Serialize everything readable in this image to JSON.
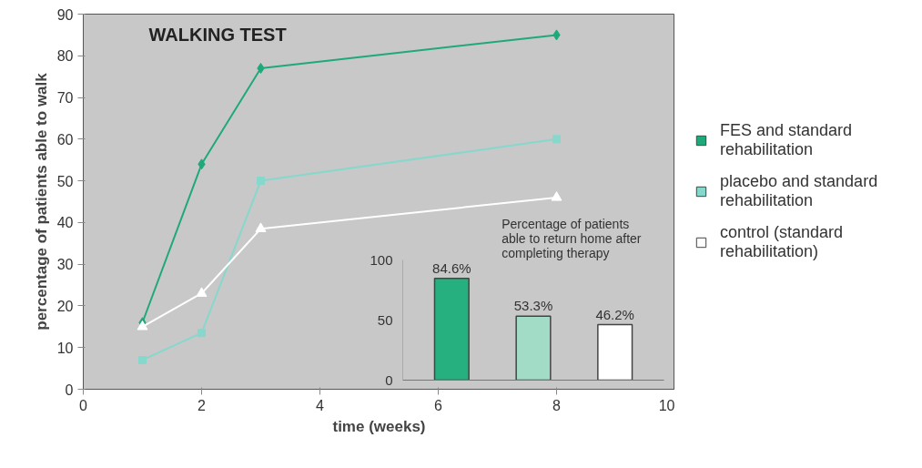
{
  "chart_data": [
    {
      "type": "line",
      "title": "WALKING TEST",
      "xlabel": "time (weeks)",
      "ylabel": "percentage of patients able to walk",
      "series": [
        {
          "name": "FES and standard rehabilitation",
          "color": "#1fa97a",
          "marker": "diamond",
          "x": [
            1,
            2,
            3,
            8
          ],
          "values": [
            16,
            54,
            77,
            85
          ]
        },
        {
          "name": "placebo and standard rehabilitation",
          "color": "#86d8cc",
          "marker": "square",
          "x": [
            1,
            2,
            3,
            8
          ],
          "values": [
            7,
            13.5,
            50,
            60
          ]
        },
        {
          "name": "control (standard rehabilitation)",
          "color": "#ffffff",
          "marker": "triangle",
          "x": [
            1,
            2,
            3,
            8
          ],
          "values": [
            15,
            23,
            38.5,
            46
          ]
        }
      ],
      "xlim": [
        0,
        10
      ],
      "xticks": [
        0,
        2,
        4,
        6,
        8,
        10
      ],
      "ylim": [
        0,
        90
      ],
      "yticks": [
        0,
        10,
        20,
        30,
        40,
        50,
        60,
        70,
        80,
        90
      ],
      "legend": "right"
    },
    {
      "type": "bar",
      "title": "Percentage of patients able to return home after completing therapy",
      "categories": [
        null,
        null,
        null
      ],
      "values": [
        84.6,
        53.3,
        46.2
      ],
      "colors": [
        "#26b07f",
        "#a2dcc6",
        "#ffffff"
      ],
      "value_labels": [
        "84.6%",
        "53.3%",
        "46.2%"
      ],
      "ylim": [
        0,
        100
      ],
      "yticks": [
        0,
        50,
        100
      ],
      "tick_labels": "y"
    }
  ]
}
